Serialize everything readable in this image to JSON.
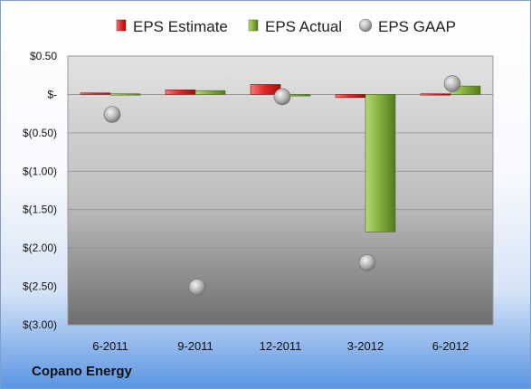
{
  "company": "Copano Energy",
  "colors": {
    "estimate": "#d42020",
    "actual": "#80ad3c",
    "gaap": "#a8a8a8"
  },
  "chart_data": {
    "type": "bar",
    "categories": [
      "6-2011",
      "9-2011",
      "12-2011",
      "3-2012",
      "6-2012"
    ],
    "series": [
      {
        "name": "EPS Estimate",
        "kind": "bar",
        "values": [
          0.02,
          0.06,
          0.13,
          -0.04,
          0.01
        ]
      },
      {
        "name": "EPS Actual",
        "kind": "bar",
        "values": [
          0.0,
          0.05,
          -0.02,
          -1.79,
          0.11
        ]
      },
      {
        "name": "EPS GAAP",
        "kind": "scatter",
        "values": [
          -0.26,
          -2.51,
          -0.03,
          -2.19,
          0.14
        ]
      }
    ],
    "ylim": [
      -3.0,
      0.5
    ],
    "yticks": [
      0.5,
      0,
      -0.5,
      -1.0,
      -1.5,
      -2.0,
      -2.5,
      -3.0
    ],
    "ytick_labels": [
      "$0.50",
      "$-",
      "$(0.50)",
      "$(1.00)",
      "$(1.50)",
      "$(2.00)",
      "$(2.50)",
      "$(3.00)"
    ],
    "grid": true,
    "legend": "top"
  }
}
